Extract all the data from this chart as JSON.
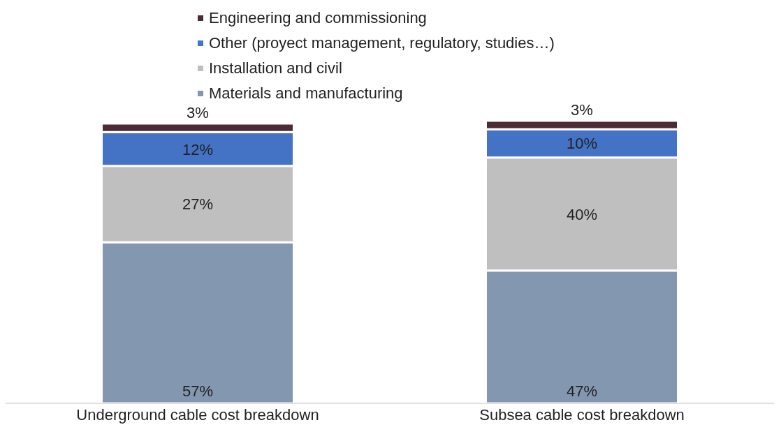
{
  "chart_data": {
    "type": "bar",
    "stacked": true,
    "categories": [
      "Underground cable cost breakdown",
      "Subsea cable cost breakdown"
    ],
    "series": [
      {
        "name": "Materials and manufacturing",
        "color": "#8497b0",
        "values": [
          57,
          47
        ],
        "value_labels": [
          "57%",
          "47%"
        ]
      },
      {
        "name": "Installation and civil",
        "color": "#bfbfbf",
        "values": [
          27,
          40
        ],
        "value_labels": [
          "27%",
          "40%"
        ]
      },
      {
        "name": "Other (proyect management, regulatory, studies…)",
        "color": "#4472c4",
        "values": [
          12,
          10
        ],
        "value_labels": [
          "12%",
          "10%"
        ]
      },
      {
        "name": "Engineering and commissioning",
        "color": "#4d2a35",
        "values": [
          3,
          3
        ],
        "value_labels": [
          "3%",
          "3%"
        ]
      }
    ],
    "legend": "top",
    "grid": false
  }
}
